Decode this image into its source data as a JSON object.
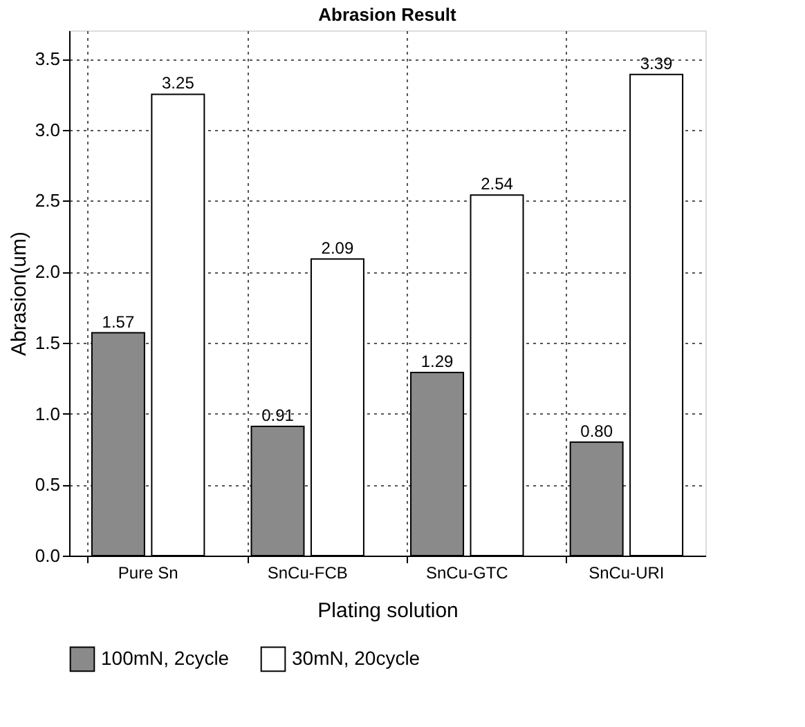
{
  "chart_data": {
    "type": "bar",
    "title": "Abrasion Result",
    "xlabel": "Plating solution",
    "ylabel": "Abrasion(um)",
    "categories": [
      "Pure Sn",
      "SnCu-FCB",
      "SnCu-GTC",
      "SnCu-URI"
    ],
    "series": [
      {
        "name": "100mN, 2cycle",
        "color": "#8a8a8a",
        "values": [
          1.57,
          0.91,
          1.29,
          0.8
        ],
        "value_labels": [
          "1.57",
          "0.91",
          "1.29",
          "0.80"
        ]
      },
      {
        "name": "30mN, 20cycle",
        "color": "#ffffff",
        "values": [
          3.25,
          2.09,
          2.54,
          3.39
        ],
        "value_labels": [
          "3.25",
          "2.09",
          "2.54",
          "3.39"
        ]
      }
    ],
    "ylim": [
      0,
      3.7
    ],
    "yticks": [
      {
        "value": 0,
        "label": "0.0"
      },
      0.5,
      {
        "value": 1,
        "label": "1.0"
      },
      1.5,
      {
        "value": 2,
        "label": "2.0"
      },
      2.5,
      {
        "value": 3,
        "label": "3.0"
      },
      3.5
    ],
    "grid": true,
    "legend": "bottom"
  }
}
